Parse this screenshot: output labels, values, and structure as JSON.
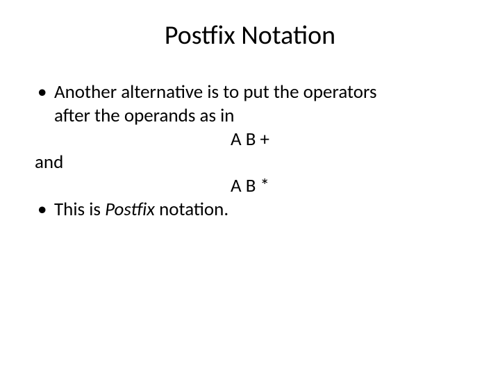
{
  "slide": {
    "title": "Postfix Notation",
    "bullet1_line1": "Another alternative is to put the operators",
    "bullet1_line2": "after the operands as in",
    "expr1": "A B +",
    "and_text": "and",
    "expr2": "A B *",
    "bullet2_prefix": "This is ",
    "bullet2_italic": "Postfix",
    "bullet2_suffix": " notation."
  },
  "style": {
    "background": "#ffffff",
    "text_color": "#000000",
    "title_fontsize": 38,
    "body_fontsize": 27,
    "font_family": "Calibri"
  }
}
